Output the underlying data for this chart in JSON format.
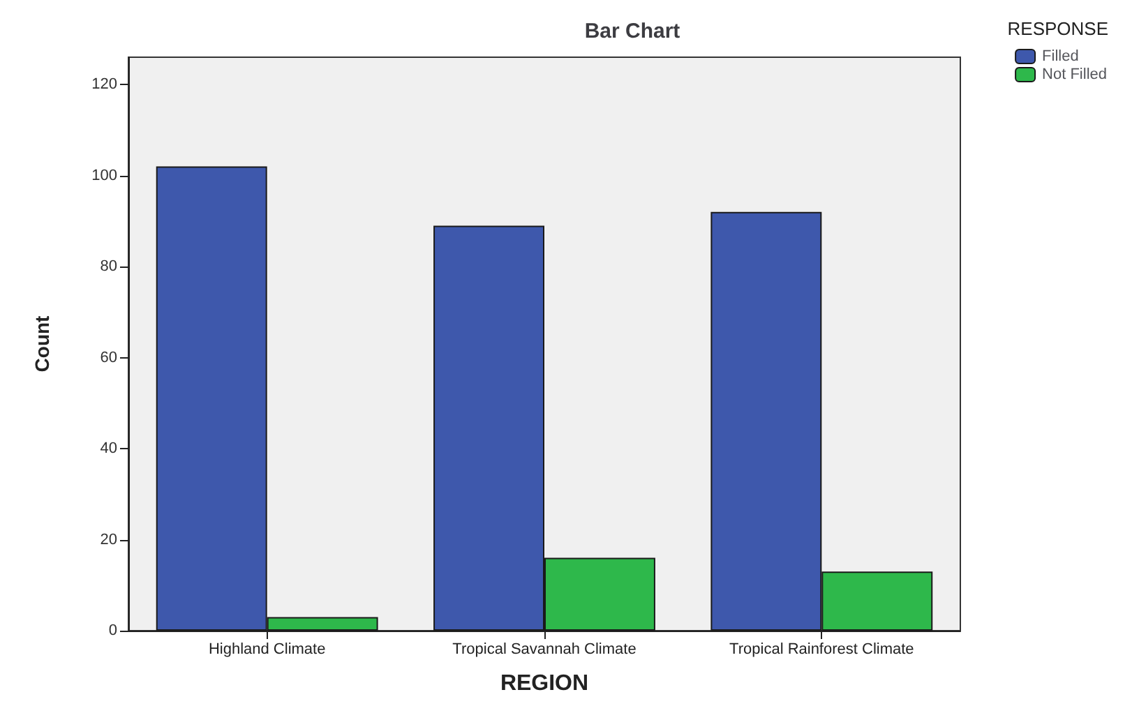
{
  "chart_data": {
    "type": "bar",
    "title": "Bar Chart",
    "xlabel": "REGION",
    "ylabel": "Count",
    "legend_title": "RESPONSE",
    "categories": [
      "Highland Climate",
      "Tropical Savannah Climate",
      "Tropical Rainforest Climate"
    ],
    "series": [
      {
        "name": "Filled",
        "color": "#3e58ac",
        "values": [
          102,
          89,
          92
        ]
      },
      {
        "name": "Not Filled",
        "color": "#2eb84b",
        "values": [
          3,
          16,
          13
        ]
      }
    ],
    "ylim": [
      0,
      126
    ],
    "yticks": [
      0,
      20,
      40,
      60,
      80,
      100,
      120
    ],
    "grid": false,
    "legend": "top right"
  }
}
